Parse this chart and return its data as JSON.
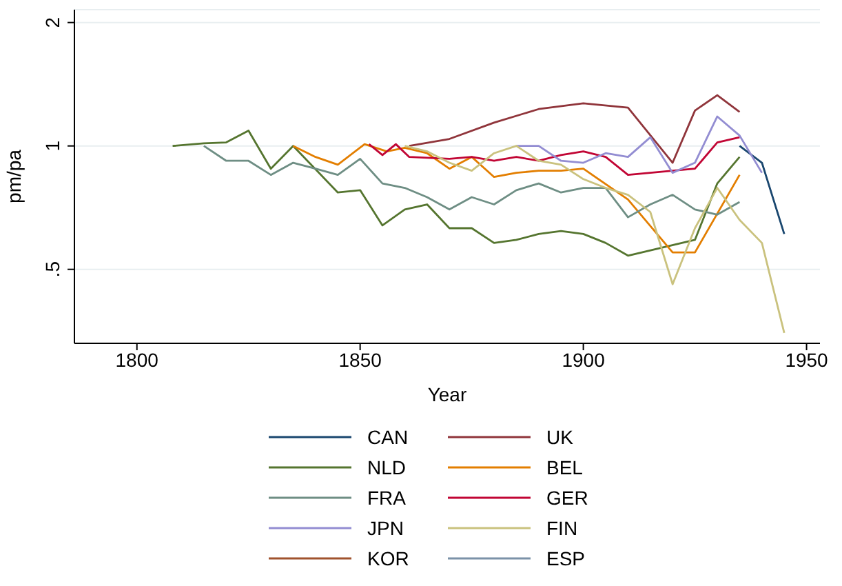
{
  "chart_data": {
    "type": "line",
    "xlabel": "Year",
    "ylabel": "pm/pa",
    "log": "y",
    "grid": "y",
    "legend": "bottom",
    "xlim": [
      1786,
      1953
    ],
    "xticks": [
      1800,
      1850,
      1900,
      1950
    ],
    "ylim": [
      0.33,
      2.15
    ],
    "yticks": [
      {
        "value": 0.5,
        "label": ".5"
      },
      1,
      2
    ],
    "series": [
      {
        "name": "CAN",
        "color": "#1a476f",
        "x": [
          1935,
          1940,
          1945
        ],
        "values": [
          1.0,
          0.91,
          0.61
        ]
      },
      {
        "name": "UK",
        "color": "#90353b",
        "x": [
          1861,
          1870,
          1880,
          1890,
          1900,
          1910,
          1920,
          1925,
          1930,
          1935
        ],
        "values": [
          1.0,
          1.04,
          1.14,
          1.23,
          1.27,
          1.24,
          0.91,
          1.22,
          1.33,
          1.21
        ]
      },
      {
        "name": "NLD",
        "color": "#55752f",
        "x": [
          1808,
          1815,
          1820,
          1825,
          1830,
          1835,
          1845,
          1850,
          1855,
          1860,
          1865,
          1870,
          1875,
          1880,
          1885,
          1890,
          1895,
          1900,
          1905,
          1910,
          1925,
          1930,
          1935
        ],
        "values": [
          1.0,
          1.015,
          1.02,
          1.09,
          0.88,
          1.0,
          0.77,
          0.78,
          0.64,
          0.7,
          0.72,
          0.63,
          0.63,
          0.58,
          0.59,
          0.61,
          0.62,
          0.61,
          0.58,
          0.54,
          0.59,
          0.81,
          0.94
        ]
      },
      {
        "name": "BEL",
        "color": "#e37e00",
        "x": [
          1835,
          1840,
          1845,
          1851,
          1856,
          1860,
          1865,
          1870,
          1875,
          1880,
          1885,
          1890,
          1895,
          1900,
          1910,
          1920,
          1925,
          1935
        ],
        "values": [
          1.0,
          0.94,
          0.9,
          1.01,
          0.97,
          0.99,
          0.96,
          0.88,
          0.94,
          0.84,
          0.86,
          0.87,
          0.87,
          0.88,
          0.74,
          0.55,
          0.55,
          0.85
        ]
      },
      {
        "name": "FRA",
        "color": "#6e8e84",
        "x": [
          1815,
          1820,
          1825,
          1830,
          1835,
          1840,
          1845,
          1850,
          1855,
          1860,
          1865,
          1870,
          1875,
          1880,
          1885,
          1890,
          1895,
          1900,
          1905,
          1910,
          1915,
          1920,
          1925,
          1930,
          1935
        ],
        "values": [
          1.0,
          0.92,
          0.92,
          0.85,
          0.91,
          0.88,
          0.85,
          0.93,
          0.81,
          0.79,
          0.75,
          0.7,
          0.75,
          0.72,
          0.78,
          0.81,
          0.77,
          0.79,
          0.79,
          0.67,
          0.72,
          0.76,
          0.7,
          0.68,
          0.73
        ]
      },
      {
        "name": "GER",
        "color": "#c10534",
        "x": [
          1852,
          1855,
          1858,
          1861,
          1870,
          1875,
          1880,
          1885,
          1890,
          1895,
          1900,
          1905,
          1910,
          1925,
          1930,
          1935
        ],
        "values": [
          1.01,
          0.95,
          1.01,
          0.94,
          0.93,
          0.94,
          0.92,
          0.94,
          0.92,
          0.95,
          0.97,
          0.94,
          0.85,
          0.88,
          1.02,
          1.05
        ]
      },
      {
        "name": "JPN",
        "color": "#938dd2",
        "x": [
          1885,
          1890,
          1895,
          1900,
          1905,
          1910,
          1915,
          1920,
          1925,
          1930,
          1935,
          1940
        ],
        "values": [
          1.0,
          1.0,
          0.92,
          0.91,
          0.96,
          0.94,
          1.05,
          0.86,
          0.91,
          1.18,
          1.06,
          0.86
        ]
      },
      {
        "name": "FIN",
        "color": "#cac27e",
        "x": [
          1860,
          1865,
          1870,
          1875,
          1880,
          1885,
          1890,
          1895,
          1900,
          1905,
          1910,
          1915,
          1920,
          1925,
          1930,
          1935,
          1940,
          1945
        ],
        "values": [
          1.0,
          0.97,
          0.91,
          0.87,
          0.96,
          1.0,
          0.92,
          0.9,
          0.83,
          0.79,
          0.76,
          0.69,
          0.46,
          0.63,
          0.79,
          0.66,
          0.58,
          0.35
        ]
      },
      {
        "name": "KOR",
        "color": "#a0522d"
      },
      {
        "name": "ESP",
        "color": "#7b92a8"
      }
    ]
  }
}
